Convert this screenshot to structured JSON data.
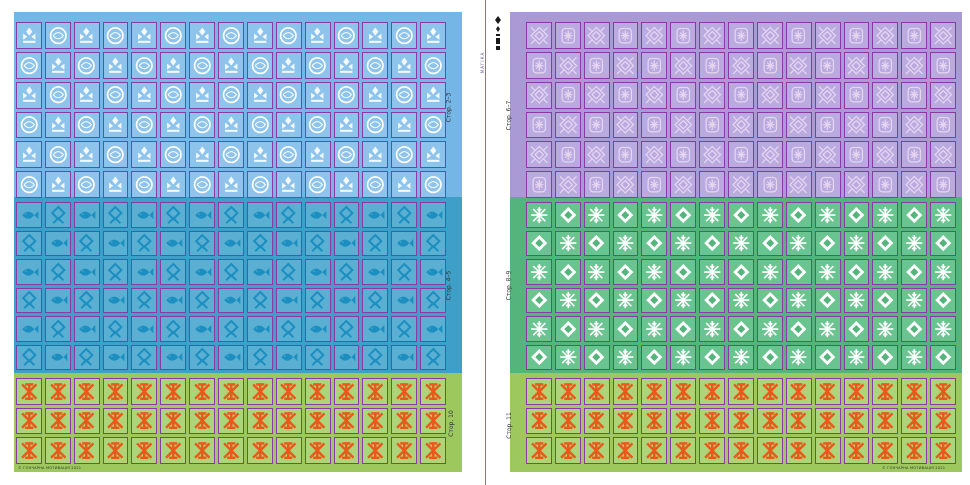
{
  "colors": {
    "left_top_band": "#74b6e6",
    "left_mid_band": "#3ea0c8",
    "left_bottom_band": "#9cc85e",
    "right_top_band": "#a99ad6",
    "right_mid_band": "#54b47c",
    "right_bottom_band": "#9cc85e",
    "cell_border": "#8a3aa6",
    "center_line": "#3a8fd8"
  },
  "left_page": {
    "label_top": "Стор. 2–3",
    "label_mid": "Стор. 4–5",
    "label_bottom": "Стор. 10",
    "copyright": "© ГОНЧАРНА МОТИВАЦІЯ 2021"
  },
  "right_page": {
    "label_top": "Стор. 6–7",
    "label_mid": "Стор. 8–9",
    "label_bottom": "Стор. 11",
    "copyright": "© ГОНЧАРНА МОТИВАЦІЯ 2021"
  },
  "logo": {
    "icon": "ornament-logo-icon",
    "text": "МАГІКА",
    "subtext": "ГОНЧАРНІ ЗАМОТКИ"
  },
  "patterns": {
    "left_top": [
      "wheat",
      "circle"
    ],
    "left_mid": [
      "fish",
      "amulet"
    ],
    "left_bottom": [
      "star-cross"
    ],
    "right_top": [
      "diamond-knot",
      "rosette"
    ],
    "right_mid": [
      "snowflake",
      "diamond"
    ],
    "right_bottom": [
      "star-cross"
    ]
  }
}
